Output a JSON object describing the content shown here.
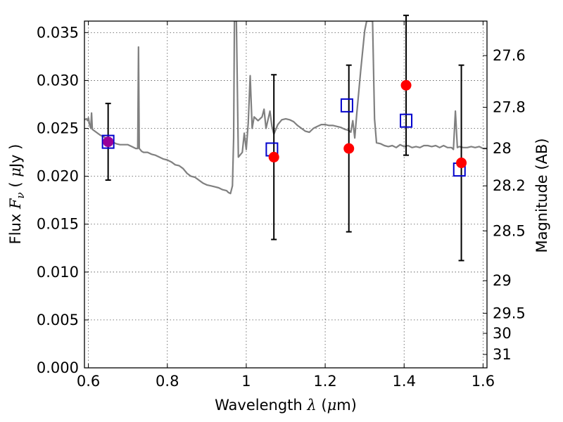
{
  "chart_data": {
    "type": "scatter",
    "xlabel": {
      "prefix": "Wavelength  ",
      "sym": "λ",
      "suffix": " (",
      "sym2": "μ",
      "suffix2": "m)"
    },
    "ylabel": {
      "prefix": "Flux  ",
      "sym": "F",
      "sub": "ν",
      "mid": "  ( ",
      "sym2": "μ",
      "suffix": "Jy )"
    },
    "ylabel_right": "Magnitude (AB)",
    "xlim": [
      0.59,
      1.61
    ],
    "ylim": [
      0.0,
      0.0362
    ],
    "grid": true,
    "x_ticks": [
      {
        "v": 0.6,
        "t": "0.6"
      },
      {
        "v": 0.8,
        "t": "0.8"
      },
      {
        "v": 1.0,
        "t": "1"
      },
      {
        "v": 1.2,
        "t": "1.2"
      },
      {
        "v": 1.4,
        "t": "1.4"
      },
      {
        "v": 1.6,
        "t": "1.6"
      }
    ],
    "y_ticks": [
      {
        "v": 0.0,
        "t": "0.000"
      },
      {
        "v": 0.005,
        "t": "0.005"
      },
      {
        "v": 0.01,
        "t": "0.010"
      },
      {
        "v": 0.015,
        "t": "0.015"
      },
      {
        "v": 0.02,
        "t": "0.020"
      },
      {
        "v": 0.025,
        "t": "0.025"
      },
      {
        "v": 0.03,
        "t": "0.030"
      },
      {
        "v": 0.035,
        "t": "0.035"
      }
    ],
    "y_right_ticks": [
      {
        "v": 0.0326,
        "t": "27.6"
      },
      {
        "v": 0.0272,
        "t": "27.8"
      },
      {
        "v": 0.0229,
        "t": "28"
      },
      {
        "v": 0.019,
        "t": "28.2"
      },
      {
        "v": 0.0143,
        "t": "28.5"
      },
      {
        "v": 0.0091,
        "t": "29"
      },
      {
        "v": 0.0057,
        "t": "29.5"
      },
      {
        "v": 0.0036,
        "t": "30"
      },
      {
        "v": 0.0014,
        "t": "31"
      }
    ],
    "colors": {
      "spectrum": "#808080",
      "model": "#0000cc",
      "observed": "#ff0000",
      "errorbar": "#000000",
      "overlap": "#990099"
    },
    "spectrum": [
      [
        0.59,
        0.0259
      ],
      [
        0.595,
        0.026
      ],
      [
        0.598,
        0.0258
      ],
      [
        0.6,
        0.0261
      ],
      [
        0.603,
        0.0254
      ],
      [
        0.606,
        0.025
      ],
      [
        0.608,
        0.0266
      ],
      [
        0.61,
        0.0249
      ],
      [
        0.62,
        0.0246
      ],
      [
        0.63,
        0.0243
      ],
      [
        0.64,
        0.0241
      ],
      [
        0.65,
        0.0238
      ],
      [
        0.66,
        0.0236
      ],
      [
        0.67,
        0.0234
      ],
      [
        0.68,
        0.0233
      ],
      [
        0.69,
        0.0233
      ],
      [
        0.7,
        0.0233
      ],
      [
        0.71,
        0.0231
      ],
      [
        0.72,
        0.0229
      ],
      [
        0.725,
        0.0229
      ],
      [
        0.727,
        0.0335
      ],
      [
        0.729,
        0.0229
      ],
      [
        0.735,
        0.0226
      ],
      [
        0.74,
        0.0225
      ],
      [
        0.75,
        0.0225
      ],
      [
        0.76,
        0.0223
      ],
      [
        0.77,
        0.0222
      ],
      [
        0.78,
        0.022
      ],
      [
        0.79,
        0.0218
      ],
      [
        0.8,
        0.0217
      ],
      [
        0.81,
        0.0215
      ],
      [
        0.82,
        0.0212
      ],
      [
        0.83,
        0.0211
      ],
      [
        0.84,
        0.0208
      ],
      [
        0.85,
        0.0203
      ],
      [
        0.86,
        0.02
      ],
      [
        0.87,
        0.0199
      ],
      [
        0.88,
        0.0196
      ],
      [
        0.89,
        0.0193
      ],
      [
        0.9,
        0.0191
      ],
      [
        0.91,
        0.019
      ],
      [
        0.92,
        0.0189
      ],
      [
        0.93,
        0.0188
      ],
      [
        0.94,
        0.0186
      ],
      [
        0.95,
        0.0185
      ],
      [
        0.955,
        0.0183
      ],
      [
        0.96,
        0.0182
      ],
      [
        0.965,
        0.019
      ],
      [
        0.968,
        0.024
      ],
      [
        0.97,
        0.0362
      ],
      [
        0.975,
        0.0362
      ],
      [
        0.98,
        0.022
      ],
      [
        0.99,
        0.0225
      ],
      [
        0.995,
        0.0245
      ],
      [
        1.0,
        0.0228
      ],
      [
        1.005,
        0.0255
      ],
      [
        1.01,
        0.0305
      ],
      [
        1.015,
        0.025
      ],
      [
        1.02,
        0.0262
      ],
      [
        1.03,
        0.0258
      ],
      [
        1.04,
        0.0262
      ],
      [
        1.045,
        0.027
      ],
      [
        1.05,
        0.025
      ],
      [
        1.06,
        0.0268
      ],
      [
        1.065,
        0.0252
      ],
      [
        1.07,
        0.0244
      ],
      [
        1.08,
        0.0254
      ],
      [
        1.09,
        0.0259
      ],
      [
        1.1,
        0.026
      ],
      [
        1.11,
        0.0259
      ],
      [
        1.12,
        0.0257
      ],
      [
        1.13,
        0.0253
      ],
      [
        1.14,
        0.025
      ],
      [
        1.15,
        0.0247
      ],
      [
        1.16,
        0.0246
      ],
      [
        1.17,
        0.025
      ],
      [
        1.18,
        0.0252
      ],
      [
        1.19,
        0.0254
      ],
      [
        1.2,
        0.0254
      ],
      [
        1.21,
        0.0253
      ],
      [
        1.22,
        0.0253
      ],
      [
        1.23,
        0.0252
      ],
      [
        1.24,
        0.0251
      ],
      [
        1.25,
        0.0249
      ],
      [
        1.26,
        0.0248
      ],
      [
        1.265,
        0.0246
      ],
      [
        1.27,
        0.0258
      ],
      [
        1.275,
        0.024
      ],
      [
        1.28,
        0.0265
      ],
      [
        1.29,
        0.031
      ],
      [
        1.3,
        0.0352
      ],
      [
        1.305,
        0.0362
      ],
      [
        1.32,
        0.0362
      ],
      [
        1.325,
        0.026
      ],
      [
        1.33,
        0.0235
      ],
      [
        1.34,
        0.0234
      ],
      [
        1.35,
        0.0232
      ],
      [
        1.36,
        0.0231
      ],
      [
        1.37,
        0.0232
      ],
      [
        1.38,
        0.023
      ],
      [
        1.39,
        0.0233
      ],
      [
        1.4,
        0.0231
      ],
      [
        1.41,
        0.0232
      ],
      [
        1.42,
        0.023
      ],
      [
        1.43,
        0.0231
      ],
      [
        1.44,
        0.023
      ],
      [
        1.45,
        0.0232
      ],
      [
        1.46,
        0.0232
      ],
      [
        1.47,
        0.0231
      ],
      [
        1.48,
        0.0232
      ],
      [
        1.49,
        0.023
      ],
      [
        1.5,
        0.0232
      ],
      [
        1.51,
        0.023
      ],
      [
        1.52,
        0.023
      ],
      [
        1.525,
        0.0228
      ],
      [
        1.53,
        0.0268
      ],
      [
        1.535,
        0.023
      ],
      [
        1.54,
        0.0231
      ],
      [
        1.55,
        0.023
      ],
      [
        1.56,
        0.023
      ],
      [
        1.57,
        0.0231
      ],
      [
        1.58,
        0.023
      ],
      [
        1.59,
        0.0231
      ],
      [
        1.6,
        0.0229
      ],
      [
        1.61,
        0.0229
      ]
    ],
    "model_points": [
      {
        "x": 0.65,
        "y": 0.0236
      },
      {
        "x": 1.065,
        "y": 0.0228
      },
      {
        "x": 1.255,
        "y": 0.0274
      },
      {
        "x": 1.405,
        "y": 0.0258
      },
      {
        "x": 1.54,
        "y": 0.0207
      }
    ],
    "observed_points": [
      {
        "x": 0.65,
        "y": 0.0236,
        "err": 0.004
      },
      {
        "x": 1.07,
        "y": 0.022,
        "err": 0.0086
      },
      {
        "x": 1.26,
        "y": 0.0229,
        "err": 0.0087
      },
      {
        "x": 1.405,
        "y": 0.0295,
        "err": 0.0073
      },
      {
        "x": 1.545,
        "y": 0.0214,
        "err": 0.0102
      }
    ]
  }
}
